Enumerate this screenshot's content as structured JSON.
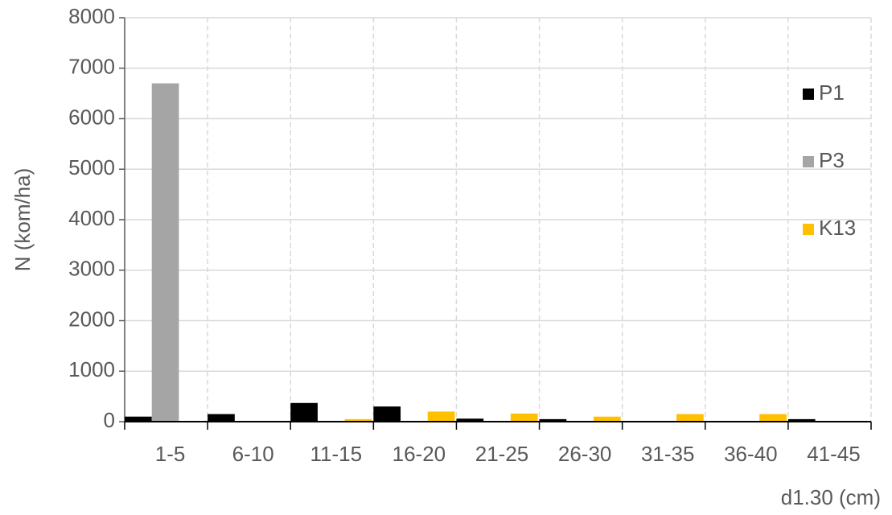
{
  "chart_data": {
    "type": "bar",
    "y_label": "N (kom/ha)",
    "x_label": "d1.30 (cm)",
    "categories": [
      "1-5",
      "6-10",
      "11-15",
      "16-20",
      "21-25",
      "26-30",
      "31-35",
      "36-40",
      "41-45"
    ],
    "series": [
      {
        "name": "P1",
        "color": "#000000",
        "values": [
          100,
          150,
          370,
          300,
          60,
          50,
          0,
          0,
          50
        ]
      },
      {
        "name": "P3",
        "color": "#a5a5a5",
        "values": [
          6700,
          0,
          0,
          0,
          0,
          0,
          0,
          0,
          0
        ]
      },
      {
        "name": "K13",
        "color": "#ffc000",
        "values": [
          0,
          0,
          50,
          200,
          160,
          100,
          150,
          150,
          0
        ]
      }
    ],
    "ylim": [
      0,
      8000
    ],
    "yticks": [
      0,
      1000,
      2000,
      3000,
      4000,
      5000,
      6000,
      7000,
      8000
    ],
    "grid": true,
    "legend": "right"
  }
}
